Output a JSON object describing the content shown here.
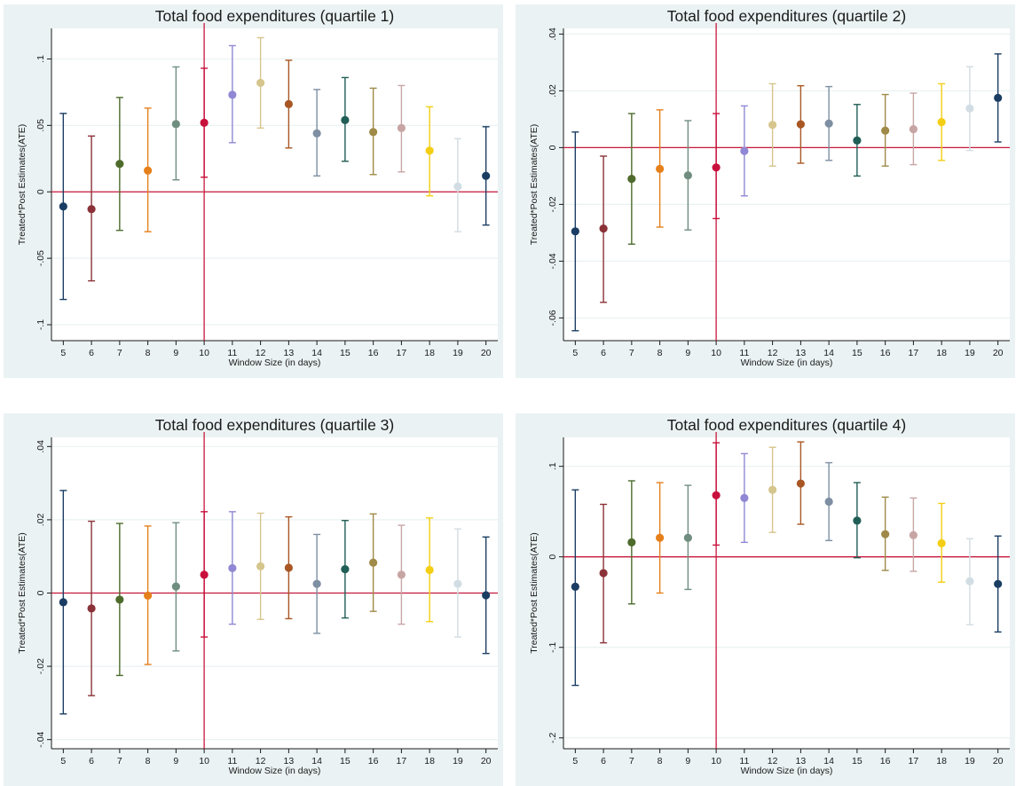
{
  "chart_data": [
    {
      "type": "scatter",
      "title": "Total food expenditures (quartile 1)",
      "xlabel": "Window Size (in days)",
      "ylabel": "Treated*Post Estimates(ATE)",
      "x": [
        5,
        6,
        7,
        8,
        9,
        10,
        11,
        12,
        13,
        14,
        15,
        16,
        17,
        18,
        19,
        20
      ],
      "ylim": [
        -0.112,
        0.123
      ],
      "yticks": [
        -0.1,
        -0.05,
        0,
        0.05,
        0.1
      ],
      "ytick_labels": [
        "-.1",
        "-.05",
        "0",
        ".05",
        ".1"
      ],
      "estimates": [
        -0.011,
        -0.013,
        0.021,
        0.016,
        0.051,
        0.052,
        0.073,
        0.082,
        0.066,
        0.044,
        0.054,
        0.045,
        0.048,
        0.031,
        0.004,
        0.012
      ],
      "ci_low": [
        -0.081,
        -0.067,
        -0.029,
        -0.03,
        0.009,
        0.011,
        0.037,
        0.048,
        0.033,
        0.012,
        0.023,
        0.013,
        0.015,
        -0.003,
        -0.03,
        -0.025
      ],
      "ci_high": [
        0.059,
        0.042,
        0.071,
        0.063,
        0.094,
        0.093,
        0.11,
        0.116,
        0.099,
        0.077,
        0.086,
        0.078,
        0.08,
        0.064,
        0.04,
        0.049
      ],
      "reference_lines": {
        "y": 0,
        "x": 10
      },
      "grid": true
    },
    {
      "type": "scatter",
      "title": "Total food expenditures (quartile 2)",
      "xlabel": "Window Size (in days)",
      "ylabel": "Treated*Post Estimates(ATE)",
      "x": [
        5,
        6,
        7,
        8,
        9,
        10,
        11,
        12,
        13,
        14,
        15,
        16,
        17,
        18,
        19,
        20
      ],
      "ylim": [
        -0.068,
        0.042
      ],
      "yticks": [
        -0.06,
        -0.04,
        -0.02,
        0,
        0.02,
        0.04
      ],
      "ytick_labels": [
        "-.06",
        "-.04",
        "-.02",
        "0",
        ".02",
        ".04"
      ],
      "estimates": [
        -0.0295,
        -0.0285,
        -0.011,
        -0.0075,
        -0.0098,
        -0.007,
        -0.0012,
        0.008,
        0.0082,
        0.0085,
        0.0025,
        0.006,
        0.0065,
        0.009,
        0.0138,
        0.0175
      ],
      "ci_low": [
        -0.0645,
        -0.0545,
        -0.034,
        -0.028,
        -0.029,
        -0.025,
        -0.017,
        -0.0065,
        -0.0055,
        -0.0045,
        -0.01,
        -0.0065,
        -0.006,
        -0.0045,
        -0.001,
        0.002
      ],
      "ci_high": [
        0.0055,
        -0.003,
        0.012,
        0.0133,
        0.0095,
        0.012,
        0.0147,
        0.0225,
        0.0218,
        0.0215,
        0.0152,
        0.0187,
        0.0192,
        0.0225,
        0.0285,
        0.033
      ],
      "reference_lines": {
        "y": 0,
        "x": 10
      },
      "grid": true
    },
    {
      "type": "scatter",
      "title": "Total food expenditures (quartile 3)",
      "xlabel": "Window Size (in days)",
      "ylabel": "Treated*Post Estimates(ATE)",
      "x": [
        5,
        6,
        7,
        8,
        9,
        10,
        11,
        12,
        13,
        14,
        15,
        16,
        17,
        18,
        19,
        20
      ],
      "ylim": [
        -0.0425,
        0.0425
      ],
      "yticks": [
        -0.04,
        -0.02,
        0,
        0.02,
        0.04
      ],
      "ytick_labels": [
        "-.04",
        "-.02",
        "0",
        ".02",
        ".04"
      ],
      "estimates": [
        -0.0025,
        -0.0042,
        -0.0018,
        -0.0007,
        0.0018,
        0.005,
        0.0068,
        0.0073,
        0.0069,
        0.0025,
        0.0065,
        0.0083,
        0.005,
        0.0063,
        0.0025,
        -0.0006
      ],
      "ci_low": [
        -0.033,
        -0.028,
        -0.0225,
        -0.0195,
        -0.0158,
        -0.012,
        -0.0085,
        -0.0072,
        -0.007,
        -0.011,
        -0.0068,
        -0.005,
        -0.0085,
        -0.0078,
        -0.012,
        -0.0165
      ],
      "ci_high": [
        0.028,
        0.0196,
        0.019,
        0.0183,
        0.0192,
        0.0222,
        0.0222,
        0.0218,
        0.0208,
        0.016,
        0.0198,
        0.0216,
        0.0185,
        0.0205,
        0.0175,
        0.0153
      ],
      "reference_lines": {
        "y": 0,
        "x": 10
      },
      "grid": true
    },
    {
      "type": "scatter",
      "title": "Total food expenditures (quartile 4)",
      "xlabel": "Window Size (in days)",
      "ylabel": "Treated*Post Estimates(ATE)",
      "x": [
        5,
        6,
        7,
        8,
        9,
        10,
        11,
        12,
        13,
        14,
        15,
        16,
        17,
        18,
        19,
        20
      ],
      "ylim": [
        -0.212,
        0.132
      ],
      "yticks": [
        -0.2,
        -0.1,
        0,
        0.1
      ],
      "ytick_labels": [
        "-.2",
        "-.1",
        "0",
        ".1"
      ],
      "estimates": [
        -0.033,
        -0.018,
        0.016,
        0.021,
        0.021,
        0.068,
        0.065,
        0.074,
        0.081,
        0.061,
        0.04,
        0.025,
        0.024,
        0.015,
        -0.027,
        -0.03
      ],
      "ci_low": [
        -0.142,
        -0.095,
        -0.052,
        -0.04,
        -0.036,
        0.013,
        0.016,
        0.027,
        0.036,
        0.018,
        -0.001,
        -0.015,
        -0.016,
        -0.028,
        -0.075,
        -0.083
      ],
      "ci_high": [
        0.074,
        0.058,
        0.084,
        0.082,
        0.079,
        0.126,
        0.114,
        0.121,
        0.127,
        0.104,
        0.082,
        0.066,
        0.065,
        0.059,
        0.02,
        0.023
      ],
      "reference_lines": {
        "y": 0,
        "x": 10
      },
      "grid": true
    }
  ],
  "colors": {
    "panel_bg": "#eaf2f3",
    "plot_bg": "#ffffff",
    "grid": "#eaf2f3",
    "axis": "#1a1a1a",
    "reference_line": "#c8183c",
    "series": [
      "#1b3d63",
      "#8b3238",
      "#4e6b2c",
      "#e5801c",
      "#6f8e80",
      "#c8103c",
      "#9088d4",
      "#d6c58c",
      "#a85724",
      "#7e8fa3",
      "#205e56",
      "#9f8a48",
      "#c8a5a5",
      "#f3ce14",
      "#d2dde3",
      "#1b3d63"
    ]
  }
}
